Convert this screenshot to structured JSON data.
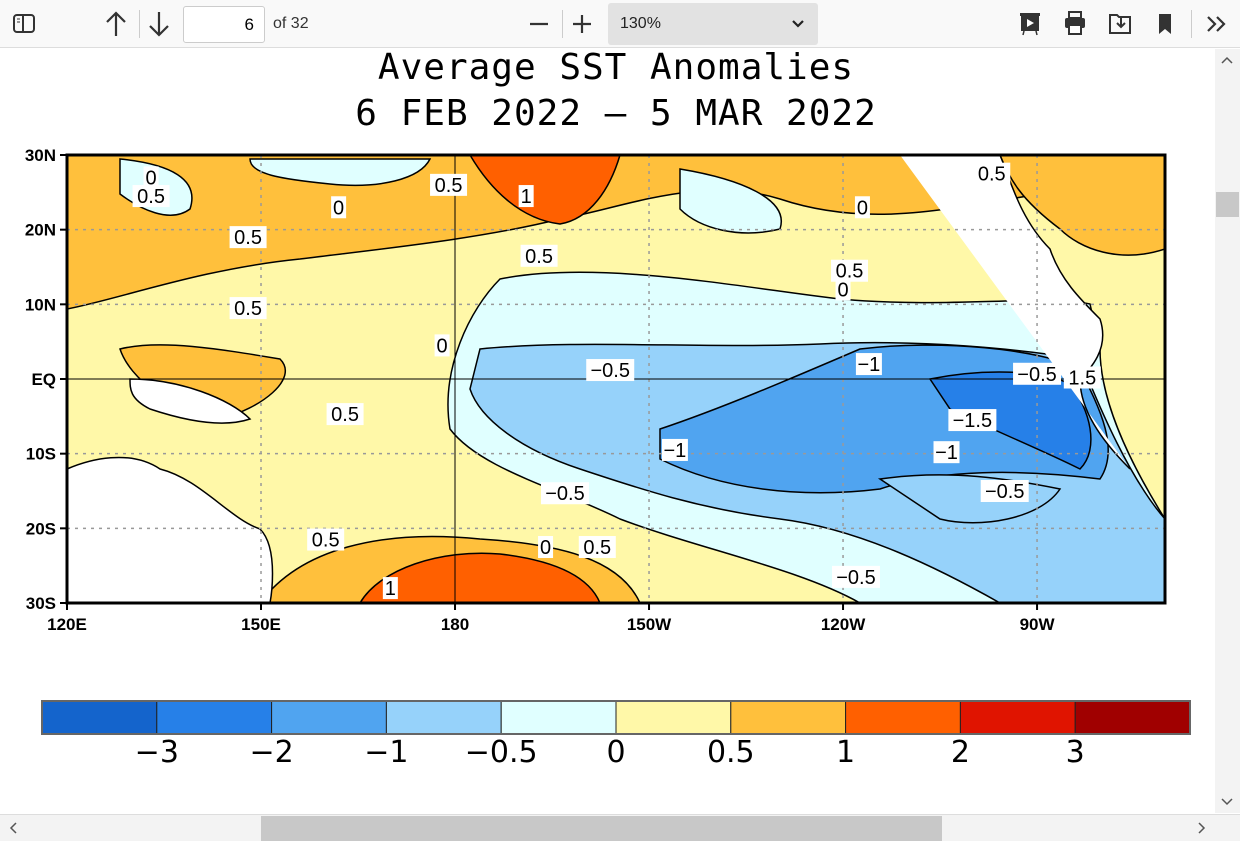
{
  "toolbar": {
    "page_current": "6",
    "page_total": "of 32",
    "zoom": "130%",
    "icons": [
      "sidebar-toggle-icon",
      "arrow-up-icon",
      "arrow-down-icon",
      "zoom-out-icon",
      "zoom-in-icon",
      "chevron-down-icon",
      "presentation-icon",
      "print-icon",
      "save-icon",
      "bookmark-icon",
      "more-tools-icon"
    ]
  },
  "figure": {
    "title_line1": "Average SST Anomalies",
    "title_line2": "6 FEB 2022 – 5 MAR 2022",
    "lat_labels": [
      "30N",
      "20N",
      "10N",
      "EQ",
      "10S",
      "20S",
      "30S"
    ],
    "lon_labels": [
      "120E",
      "150E",
      "180",
      "150W",
      "120W",
      "90W"
    ],
    "contour_labels": [
      {
        "t": "0",
        "lon": 133,
        "lat": 27
      },
      {
        "t": "0.5",
        "lon": 133,
        "lat": 24.5
      },
      {
        "t": "0",
        "lon": 162,
        "lat": 23
      },
      {
        "t": "0.5",
        "lon": 179,
        "lat": 26
      },
      {
        "t": "1",
        "lon": 191,
        "lat": 24.5
      },
      {
        "t": "0.5",
        "lon": 148,
        "lat": 19
      },
      {
        "t": "0.5",
        "lon": 193,
        "lat": 16.5
      },
      {
        "t": "0",
        "lon": 243,
        "lat": 23
      },
      {
        "t": "0.5",
        "lon": 241,
        "lat": 14.5
      },
      {
        "t": "0",
        "lon": 240,
        "lat": 12
      },
      {
        "t": "0.5",
        "lon": 148,
        "lat": 9.5
      },
      {
        "t": "0",
        "lon": 178,
        "lat": 4.5
      },
      {
        "t": "0.5",
        "lon": 263,
        "lat": 27.5
      },
      {
        "t": "−0.5",
        "lon": 204,
        "lat": 1.2
      },
      {
        "t": "−1",
        "lon": 244,
        "lat": 2
      },
      {
        "t": "−0.5",
        "lon": 270,
        "lat": 0.7
      },
      {
        "t": "1.5",
        "lon": 277,
        "lat": 0.2
      },
      {
        "t": "0.5",
        "lon": 163,
        "lat": -4.7
      },
      {
        "t": "−1.5",
        "lon": 260,
        "lat": -5.5
      },
      {
        "t": "−1",
        "lon": 214,
        "lat": -9.5
      },
      {
        "t": "−1",
        "lon": 256,
        "lat": -9.8
      },
      {
        "t": "−0.5",
        "lon": 197,
        "lat": -15.3
      },
      {
        "t": "−0.5",
        "lon": 265,
        "lat": -15
      },
      {
        "t": "0.5",
        "lon": 160,
        "lat": -21.5
      },
      {
        "t": "0",
        "lon": 194,
        "lat": -22.5
      },
      {
        "t": "0.5",
        "lon": 202,
        "lat": -22.5
      },
      {
        "t": "−0.5",
        "lon": 242,
        "lat": -26.5
      },
      {
        "t": "1",
        "lon": 170,
        "lat": -28
      }
    ]
  },
  "colorbar": {
    "colors": [
      "#1464cc",
      "#2680e8",
      "#50a4f0",
      "#96d2fa",
      "#e0ffff",
      "#fff8a8",
      "#ffc03c",
      "#ff6000",
      "#e01400",
      "#a00000"
    ],
    "ticks": [
      "−3",
      "−2",
      "−1",
      "−0.5",
      "0",
      "0.5",
      "1",
      "2",
      "3"
    ]
  }
}
